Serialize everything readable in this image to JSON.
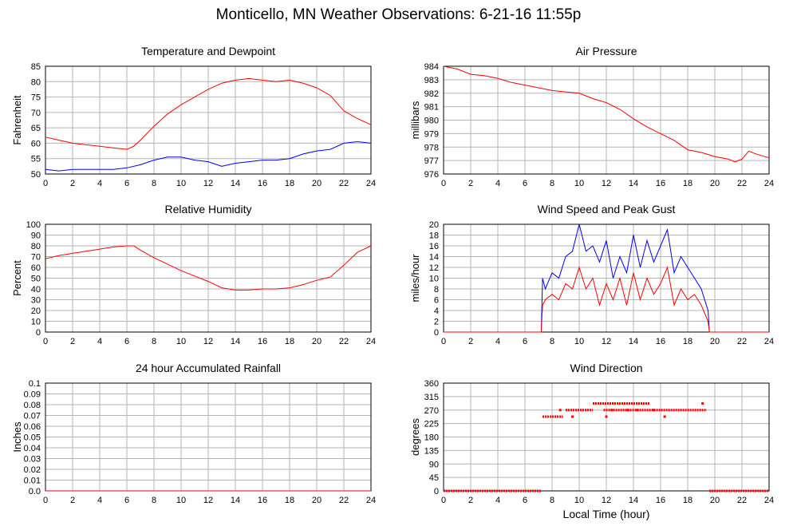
{
  "page": {
    "title": "Monticello, MN Weather Observations: 6-21-16 11:55p"
  },
  "colors": {
    "primary": "#ff0000",
    "secondary": "#0000ff",
    "grid": "#b4b4b4"
  },
  "chart_data": [
    {
      "id": "temp",
      "type": "line",
      "title": "Temperature and Dewpoint",
      "xlabel": "",
      "ylabel": "Fahrenheit",
      "xlim": [
        0,
        24
      ],
      "ylim": [
        50,
        85
      ],
      "xticks": [
        0,
        2,
        4,
        6,
        8,
        10,
        12,
        14,
        16,
        18,
        20,
        22,
        24
      ],
      "yticks": [
        50,
        55,
        60,
        65,
        70,
        75,
        80,
        85
      ],
      "series": [
        {
          "color": "#ff0000",
          "x": [
            0,
            1,
            2,
            3,
            4,
            5,
            6,
            6.5,
            7,
            8,
            9,
            10,
            11,
            12,
            13,
            14,
            15,
            16,
            17,
            18,
            19,
            20,
            21,
            22,
            23,
            24
          ],
          "y": [
            62,
            61,
            60,
            59.5,
            59,
            58.5,
            58,
            59,
            61,
            65.5,
            69.5,
            72.5,
            75,
            77.5,
            79.5,
            80.5,
            81,
            80.5,
            80,
            80.5,
            79.5,
            78,
            75.5,
            70.5,
            68,
            66
          ]
        },
        {
          "color": "#0000ff",
          "x": [
            0,
            1,
            2,
            3,
            4,
            5,
            6,
            7,
            8,
            9,
            10,
            11,
            12,
            13,
            14,
            15,
            16,
            17,
            18,
            19,
            20,
            21,
            22,
            23,
            24
          ],
          "y": [
            51.5,
            51,
            51.5,
            51.5,
            51.5,
            51.5,
            52,
            53,
            54.5,
            55.5,
            55.5,
            54.5,
            54,
            52.5,
            53.5,
            54,
            54.5,
            54.5,
            55,
            56.5,
            57.5,
            58,
            60,
            60.5,
            60
          ]
        }
      ]
    },
    {
      "id": "pressure",
      "type": "line",
      "title": "Air Pressure",
      "xlabel": "",
      "ylabel": "millibars",
      "xlim": [
        0,
        24
      ],
      "ylim": [
        976,
        984
      ],
      "xticks": [
        0,
        2,
        4,
        6,
        8,
        10,
        12,
        14,
        16,
        18,
        20,
        22,
        24
      ],
      "yticks": [
        976,
        977,
        978,
        979,
        980,
        981,
        982,
        983,
        984
      ],
      "series": [
        {
          "color": "#ff0000",
          "x": [
            0,
            1,
            2,
            3,
            4,
            5,
            6,
            7,
            8,
            9,
            10,
            11,
            12,
            13,
            14,
            15,
            16,
            17,
            18,
            19,
            20,
            21,
            21.5,
            22,
            22.5,
            23,
            24
          ],
          "y": [
            984,
            983.8,
            983.4,
            983.3,
            983.1,
            982.8,
            982.6,
            982.4,
            982.2,
            982.1,
            982,
            981.6,
            981.3,
            980.8,
            980.1,
            979.5,
            979,
            978.5,
            977.8,
            977.6,
            977.3,
            977.1,
            976.9,
            977.1,
            977.7,
            977.5,
            977.2
          ]
        }
      ]
    },
    {
      "id": "humidity",
      "type": "line",
      "title": "Relative Humidity",
      "xlabel": "",
      "ylabel": "Percent",
      "xlim": [
        0,
        24
      ],
      "ylim": [
        0,
        100
      ],
      "xticks": [
        0,
        2,
        4,
        6,
        8,
        10,
        12,
        14,
        16,
        18,
        20,
        22,
        24
      ],
      "yticks": [
        0,
        10,
        20,
        30,
        40,
        50,
        60,
        70,
        80,
        90,
        100
      ],
      "series": [
        {
          "color": "#ff0000",
          "x": [
            0,
            1,
            2,
            3,
            4,
            5,
            6,
            6.5,
            7,
            8,
            9,
            10,
            11,
            12,
            13,
            14,
            15,
            16,
            17,
            18,
            19,
            20,
            21,
            22,
            23,
            24
          ],
          "y": [
            68,
            71,
            73,
            75,
            77,
            79,
            80,
            80,
            76,
            69,
            63,
            57,
            52,
            47,
            41,
            39,
            39,
            40,
            40,
            41,
            44,
            48,
            51,
            62,
            74,
            80
          ]
        }
      ]
    },
    {
      "id": "wind",
      "type": "line",
      "title": "Wind Speed and Peak Gust",
      "xlabel": "",
      "ylabel": "miles/hour",
      "xlim": [
        0,
        24
      ],
      "ylim": [
        0,
        20
      ],
      "xticks": [
        0,
        2,
        4,
        6,
        8,
        10,
        12,
        14,
        16,
        18,
        20,
        22,
        24
      ],
      "yticks": [
        0,
        2,
        4,
        6,
        8,
        10,
        12,
        14,
        16,
        18,
        20
      ],
      "series": [
        {
          "color": "#0000ff",
          "x": [
            0,
            7.2,
            7.3,
            7.5,
            8,
            8.5,
            9,
            9.5,
            10,
            10.5,
            11,
            11.5,
            12,
            12.5,
            13,
            13.5,
            14,
            14.5,
            15,
            15.5,
            16,
            16.5,
            17,
            17.5,
            18,
            18.5,
            19,
            19.5,
            19.6,
            24
          ],
          "y": [
            0,
            0,
            10,
            8,
            11,
            10,
            14,
            15,
            20,
            15,
            16,
            13,
            17,
            10,
            14,
            11,
            18,
            12,
            17,
            13,
            16,
            19,
            11,
            14,
            12,
            10,
            8,
            4,
            0,
            0
          ]
        },
        {
          "color": "#ff0000",
          "x": [
            0,
            7.2,
            7.3,
            7.5,
            8,
            8.5,
            9,
            9.5,
            10,
            10.5,
            11,
            11.5,
            12,
            12.5,
            13,
            13.5,
            14,
            14.5,
            15,
            15.5,
            16,
            16.5,
            17,
            17.5,
            18,
            18.5,
            19,
            19.5,
            19.6,
            24
          ],
          "y": [
            0,
            0,
            5,
            6,
            7,
            6,
            9,
            8,
            12,
            8,
            10,
            5,
            9,
            6,
            10,
            5,
            11,
            6,
            10,
            7,
            9,
            12,
            5,
            8,
            6,
            7,
            5,
            2,
            0,
            0
          ]
        }
      ]
    },
    {
      "id": "rain",
      "type": "line",
      "title": "24 hour Accumulated Rainfall",
      "xlabel": "",
      "ylabel": "Inches",
      "xlim": [
        0,
        24
      ],
      "ylim": [
        0,
        0.1
      ],
      "xticks": [
        0,
        2,
        4,
        6,
        8,
        10,
        12,
        14,
        16,
        18,
        20,
        22,
        24
      ],
      "yticks": [
        0.0,
        0.01,
        0.02,
        0.03,
        0.04,
        0.05,
        0.06,
        0.07,
        0.08,
        0.09,
        0.1
      ],
      "yticklabels": [
        "0.0",
        "0.01",
        "0.02",
        "0.03",
        "0.04",
        "0.05",
        "0.06",
        "0.07",
        "0.08",
        "0.09",
        "0.1"
      ],
      "series": [
        {
          "color": "#ff0000",
          "x": [
            0,
            24
          ],
          "y": [
            0,
            0
          ]
        }
      ]
    },
    {
      "id": "winddir",
      "type": "scatter",
      "title": "Wind Direction",
      "xlabel": "Local Time (hour)",
      "ylabel": "degrees",
      "xlim": [
        0,
        24
      ],
      "ylim": [
        0,
        360
      ],
      "xticks": [
        0,
        2,
        4,
        6,
        8,
        10,
        12,
        14,
        16,
        18,
        20,
        22,
        24
      ],
      "yticks": [
        0,
        45,
        90,
        135,
        180,
        225,
        270,
        315,
        360
      ],
      "segments": [
        {
          "x0": 0,
          "x1": 7.2,
          "y": 0
        },
        {
          "x0": 7.3,
          "x1": 8.8,
          "y": 248
        },
        {
          "x0": 9,
          "x1": 11,
          "y": 270
        },
        {
          "x0": 11,
          "x1": 15.2,
          "y": 292
        },
        {
          "x0": 11.8,
          "x1": 19.4,
          "y": 270
        },
        {
          "x0": 19.6,
          "x1": 24,
          "y": 0
        }
      ],
      "points": [
        {
          "x": 8.6,
          "y": 270
        },
        {
          "x": 9.5,
          "y": 248
        },
        {
          "x": 12.0,
          "y": 248
        },
        {
          "x": 12.4,
          "y": 270
        },
        {
          "x": 13.6,
          "y": 270
        },
        {
          "x": 14.3,
          "y": 270
        },
        {
          "x": 15.5,
          "y": 270
        },
        {
          "x": 16.3,
          "y": 248
        },
        {
          "x": 19.1,
          "y": 292
        }
      ]
    }
  ]
}
